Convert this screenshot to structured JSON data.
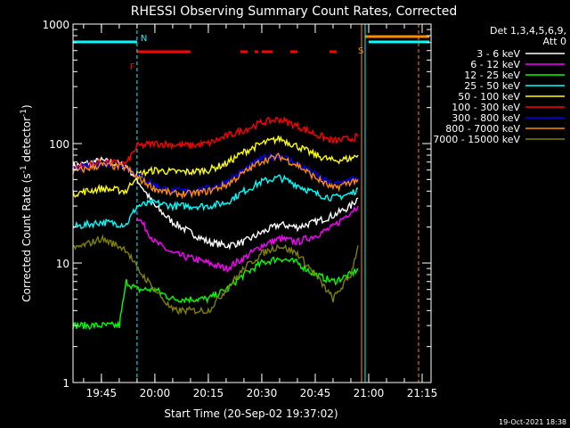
{
  "chart_data": {
    "type": "line",
    "title": "RHESSI Observing Summary Count Rates, Corrected",
    "xlabel": "Start Time (20-Sep-02 19:37:02)",
    "ylabel": "Corrected Count Rate (s⁻¹ detector⁻¹)",
    "ylabel_parts": {
      "main": "Corrected Count Rate (s",
      "sup1": "-1",
      "mid": " detector",
      "sup2": "-1",
      "end": ")"
    },
    "yscale": "log",
    "ylim": [
      1,
      1000
    ],
    "xlim": [
      "19:37:02",
      "21:17:30"
    ],
    "x_ticks": [
      "19:45",
      "20:00",
      "20:15",
      "20:30",
      "20:45",
      "21:00",
      "21:15"
    ],
    "y_ticks": [
      "1",
      "10",
      "100",
      "1000"
    ],
    "legend_header": [
      "Det 1,3,4,5,6,9,",
      "Att 0"
    ],
    "legend_position": "top-right",
    "timestamp": "19-Oct-2021 18:38",
    "annotations": [
      {
        "label": "N",
        "time": "19:55",
        "color": "#00ffff"
      },
      {
        "label": "S",
        "time": "20:59",
        "color": "#ff8c00"
      },
      {
        "label": "F",
        "time": "19:55",
        "color": "#ff0000"
      }
    ],
    "flare_intervals": [
      [
        "19:55",
        "20:10"
      ],
      [
        "20:24",
        "20:26"
      ],
      [
        "20:28",
        "20:29"
      ],
      [
        "20:30",
        "20:33"
      ],
      [
        "20:38",
        "20:40"
      ],
      [
        "20:49",
        "20:51"
      ]
    ],
    "night_interval": [
      [
        "19:37",
        "19:55"
      ],
      [
        "21:00",
        "21:17"
      ]
    ],
    "saa_interval": [
      [
        "20:59",
        "21:17"
      ]
    ],
    "series": [
      {
        "name": "3 - 6 keV",
        "color": "#ffffff",
        "points": [
          [
            "19:37",
            65
          ],
          [
            "19:45",
            72
          ],
          [
            "19:52",
            65
          ],
          [
            "19:55",
            50
          ],
          [
            "20:00",
            30
          ],
          [
            "20:05",
            22
          ],
          [
            "20:10",
            18
          ],
          [
            "20:15",
            15
          ],
          [
            "20:20",
            14
          ],
          [
            "20:25",
            15
          ],
          [
            "20:30",
            18
          ],
          [
            "20:35",
            21
          ],
          [
            "20:40",
            20
          ],
          [
            "20:45",
            22
          ],
          [
            "20:50",
            25
          ],
          [
            "20:55",
            30
          ],
          [
            "20:57",
            35
          ]
        ]
      },
      {
        "name": "6 - 12 keV",
        "color": "#ff00ff",
        "points": [
          [
            "19:55",
            25
          ],
          [
            "20:00",
            15
          ],
          [
            "20:05",
            12
          ],
          [
            "20:10",
            11
          ],
          [
            "20:15",
            10
          ],
          [
            "20:20",
            9
          ],
          [
            "20:25",
            11
          ],
          [
            "20:30",
            14
          ],
          [
            "20:35",
            16
          ],
          [
            "20:40",
            15
          ],
          [
            "20:45",
            17
          ],
          [
            "20:50",
            20
          ],
          [
            "20:55",
            27
          ],
          [
            "20:57",
            30
          ]
        ]
      },
      {
        "name": "12 - 25 keV",
        "color": "#00ff00",
        "points": [
          [
            "19:37",
            3
          ],
          [
            "19:45",
            3
          ],
          [
            "19:50",
            3
          ],
          [
            "19:52",
            7
          ],
          [
            "19:55",
            6
          ],
          [
            "20:00",
            6
          ],
          [
            "20:05",
            5
          ],
          [
            "20:10",
            5
          ],
          [
            "20:15",
            5
          ],
          [
            "20:20",
            6
          ],
          [
            "20:25",
            8
          ],
          [
            "20:30",
            10
          ],
          [
            "20:35",
            11
          ],
          [
            "20:40",
            10
          ],
          [
            "20:45",
            8
          ],
          [
            "20:50",
            7
          ],
          [
            "20:55",
            8
          ],
          [
            "20:57",
            9
          ]
        ]
      },
      {
        "name": "25 - 50 keV",
        "color": "#00ffff",
        "points": [
          [
            "19:37",
            20
          ],
          [
            "19:45",
            22
          ],
          [
            "19:52",
            21
          ],
          [
            "19:55",
            30
          ],
          [
            "20:00",
            32
          ],
          [
            "20:05",
            30
          ],
          [
            "20:10",
            30
          ],
          [
            "20:15",
            30
          ],
          [
            "20:20",
            32
          ],
          [
            "20:25",
            40
          ],
          [
            "20:30",
            48
          ],
          [
            "20:35",
            52
          ],
          [
            "20:40",
            45
          ],
          [
            "20:45",
            38
          ],
          [
            "20:50",
            35
          ],
          [
            "20:55",
            38
          ],
          [
            "20:57",
            42
          ]
        ]
      },
      {
        "name": "50 - 100 keV",
        "color": "#ffff00",
        "points": [
          [
            "19:37",
            38
          ],
          [
            "19:45",
            42
          ],
          [
            "19:52",
            40
          ],
          [
            "19:55",
            55
          ],
          [
            "20:00",
            60
          ],
          [
            "20:05",
            58
          ],
          [
            "20:10",
            58
          ],
          [
            "20:15",
            60
          ],
          [
            "20:20",
            68
          ],
          [
            "20:25",
            85
          ],
          [
            "20:30",
            100
          ],
          [
            "20:35",
            110
          ],
          [
            "20:40",
            95
          ],
          [
            "20:45",
            80
          ],
          [
            "20:50",
            72
          ],
          [
            "20:55",
            75
          ],
          [
            "20:57",
            80
          ]
        ]
      },
      {
        "name": "100 - 300 keV",
        "color": "#ff0000",
        "points": [
          [
            "19:37",
            62
          ],
          [
            "19:45",
            70
          ],
          [
            "19:52",
            68
          ],
          [
            "19:55",
            95
          ],
          [
            "20:00",
            100
          ],
          [
            "20:05",
            98
          ],
          [
            "20:10",
            96
          ],
          [
            "20:15",
            100
          ],
          [
            "20:20",
            115
          ],
          [
            "20:25",
            130
          ],
          [
            "20:30",
            150
          ],
          [
            "20:35",
            160
          ],
          [
            "20:40",
            140
          ],
          [
            "20:45",
            120
          ],
          [
            "20:50",
            105
          ],
          [
            "20:55",
            110
          ],
          [
            "20:57",
            115
          ]
        ]
      },
      {
        "name": "300 - 800 keV",
        "color": "#0000ff",
        "points": [
          [
            "19:37",
            60
          ],
          [
            "19:45",
            68
          ],
          [
            "19:52",
            65
          ],
          [
            "19:55",
            55
          ],
          [
            "20:00",
            45
          ],
          [
            "20:05",
            40
          ],
          [
            "20:10",
            40
          ],
          [
            "20:15",
            42
          ],
          [
            "20:20",
            48
          ],
          [
            "20:25",
            60
          ],
          [
            "20:30",
            75
          ],
          [
            "20:35",
            80
          ],
          [
            "20:40",
            68
          ],
          [
            "20:45",
            55
          ],
          [
            "20:50",
            45
          ],
          [
            "20:55",
            50
          ],
          [
            "20:57",
            52
          ]
        ]
      },
      {
        "name": "800 - 7000 keV",
        "color": "#ff8c00",
        "points": [
          [
            "19:37",
            58
          ],
          [
            "19:45",
            66
          ],
          [
            "19:52",
            63
          ],
          [
            "19:55",
            52
          ],
          [
            "20:00",
            42
          ],
          [
            "20:05",
            38
          ],
          [
            "20:10",
            38
          ],
          [
            "20:15",
            40
          ],
          [
            "20:20",
            45
          ],
          [
            "20:25",
            57
          ],
          [
            "20:30",
            72
          ],
          [
            "20:35",
            78
          ],
          [
            "20:40",
            66
          ],
          [
            "20:45",
            52
          ],
          [
            "20:50",
            42
          ],
          [
            "20:55",
            48
          ],
          [
            "20:57",
            50
          ]
        ]
      },
      {
        "name": "7000 - 15000 keV",
        "color": "#808000",
        "points": [
          [
            "19:37",
            13
          ],
          [
            "19:45",
            16
          ],
          [
            "19:52",
            13
          ],
          [
            "19:55",
            9
          ],
          [
            "20:00",
            6
          ],
          [
            "20:05",
            4
          ],
          [
            "20:10",
            4
          ],
          [
            "20:15",
            4
          ],
          [
            "20:20",
            6
          ],
          [
            "20:25",
            9
          ],
          [
            "20:30",
            12
          ],
          [
            "20:35",
            14
          ],
          [
            "20:40",
            12
          ],
          [
            "20:45",
            8
          ],
          [
            "20:50",
            5
          ],
          [
            "20:55",
            8
          ],
          [
            "20:57",
            14
          ]
        ]
      }
    ]
  }
}
